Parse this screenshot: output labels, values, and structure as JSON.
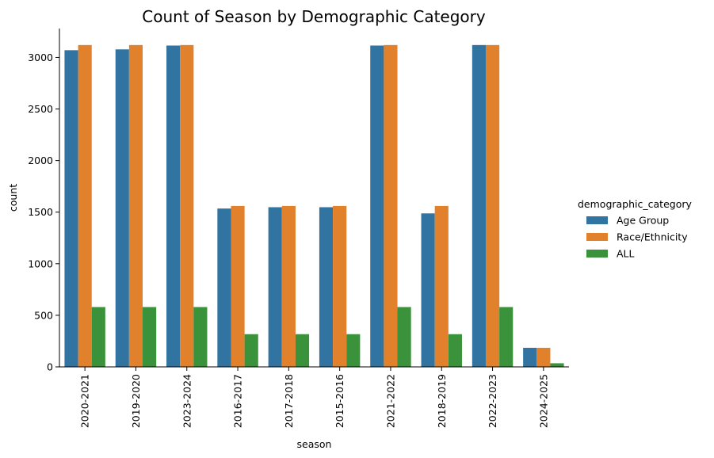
{
  "chart_data": {
    "type": "bar",
    "title": "Count of Season by Demographic Category",
    "xlabel": "season",
    "ylabel": "count",
    "ylim": [
      0,
      3280
    ],
    "yticks": [
      0,
      500,
      1000,
      1500,
      2000,
      2500,
      3000
    ],
    "categories": [
      "2020-2021",
      "2019-2020",
      "2023-2024",
      "2016-2017",
      "2017-2018",
      "2015-2016",
      "2021-2022",
      "2018-2019",
      "2022-2023",
      "2024-2025"
    ],
    "legend_title": "demographic_category",
    "legend_position": "right",
    "series": [
      {
        "name": "Age Group",
        "color": "#3274a1",
        "values": [
          3070,
          3078,
          3115,
          1535,
          1548,
          1548,
          3115,
          1488,
          3120,
          185
        ]
      },
      {
        "name": "Race/Ethnicity",
        "color": "#e1812c",
        "values": [
          3120,
          3120,
          3120,
          1560,
          1560,
          1560,
          3120,
          1560,
          3120,
          185
        ]
      },
      {
        "name": "ALL",
        "color": "#3a923a",
        "values": [
          580,
          580,
          580,
          317,
          317,
          317,
          580,
          317,
          580,
          35
        ]
      }
    ]
  }
}
